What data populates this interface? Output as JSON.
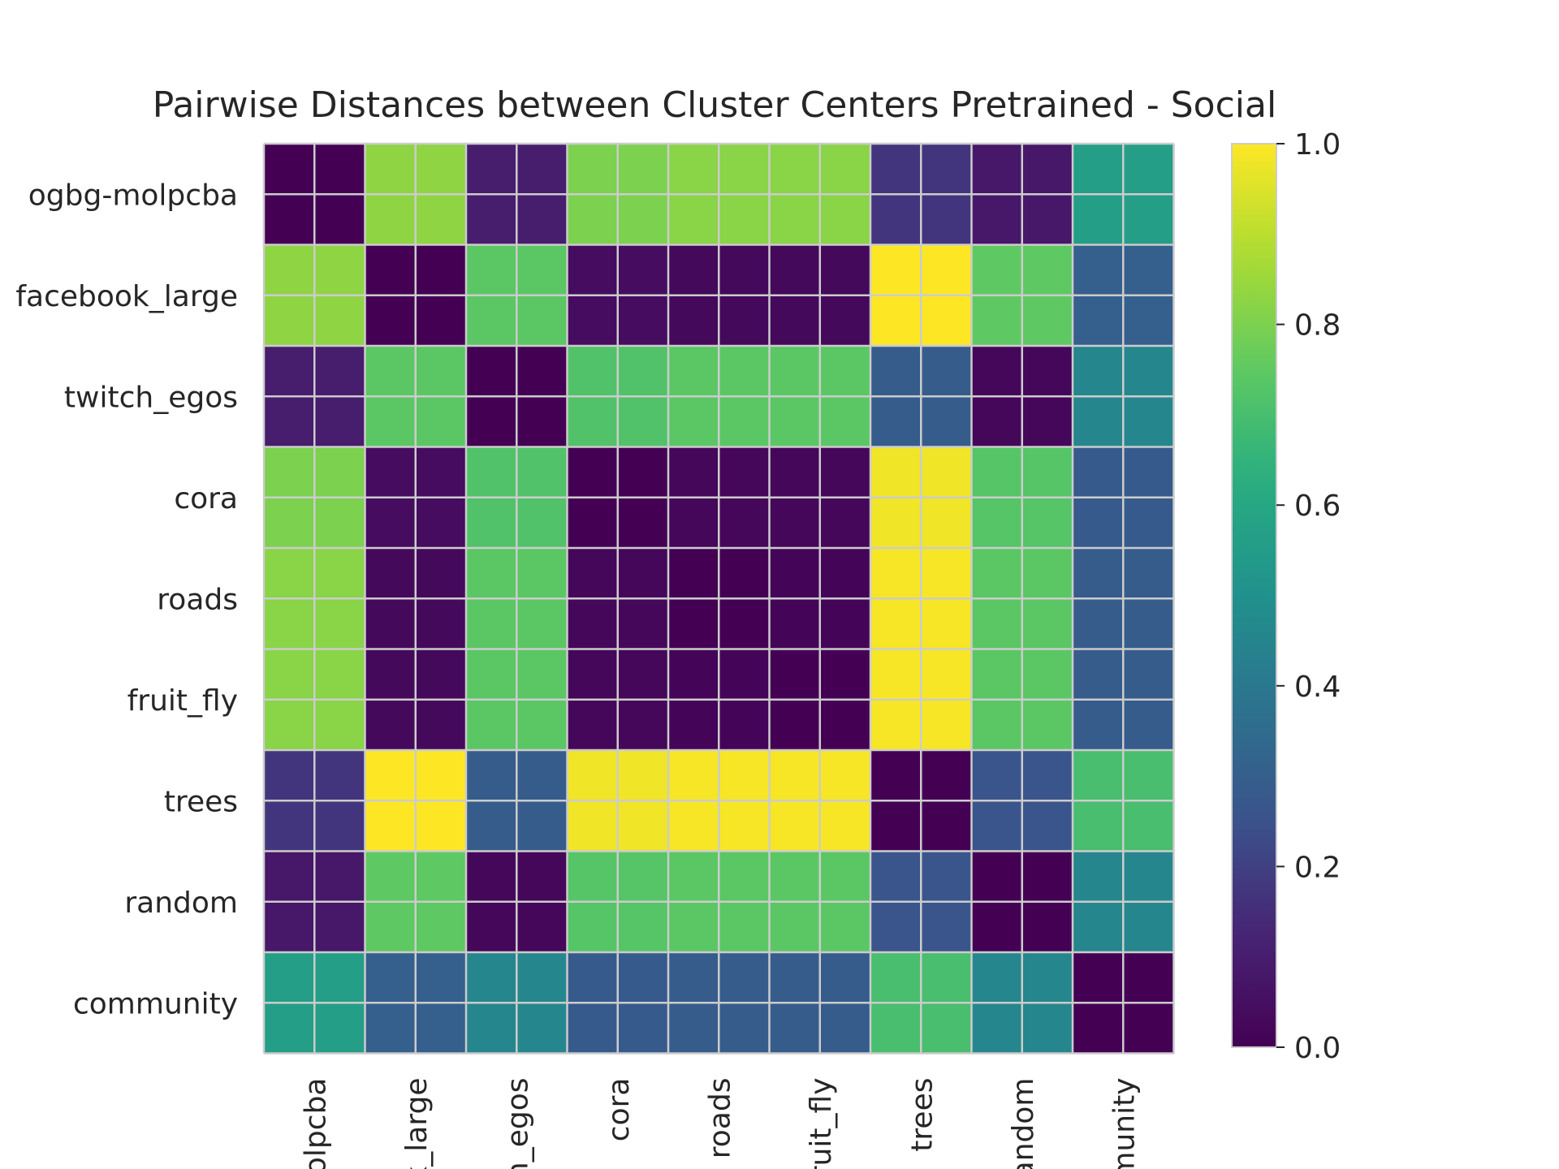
{
  "chart_data": {
    "type": "heatmap",
    "title": "Pairwise Distances between Cluster Centers Pretrained - Social",
    "row_labels": [
      "ogbg-molpcba",
      "facebook_large",
      "twitch_egos",
      "cora",
      "roads",
      "fruit_fly",
      "trees",
      "random",
      "community"
    ],
    "col_labels": [
      "ogbg-molpcba",
      "facebook_large",
      "twitch_egos",
      "cora",
      "roads",
      "fruit_fly",
      "trees",
      "random",
      "community"
    ],
    "visible_col_tick_text": [
      "olpcba",
      "k_large",
      "n_egos",
      "cora",
      "roads",
      "fruit_fly",
      "trees",
      "andom",
      "munity"
    ],
    "values": [
      [
        0.0,
        0.83,
        0.1,
        0.8,
        0.82,
        0.82,
        0.17,
        0.08,
        0.56
      ],
      [
        0.83,
        0.0,
        0.74,
        0.04,
        0.03,
        0.03,
        1.0,
        0.75,
        0.3
      ],
      [
        0.1,
        0.74,
        0.0,
        0.72,
        0.74,
        0.74,
        0.29,
        0.02,
        0.46
      ],
      [
        0.8,
        0.04,
        0.72,
        0.0,
        0.02,
        0.02,
        0.98,
        0.73,
        0.28
      ],
      [
        0.82,
        0.03,
        0.74,
        0.02,
        0.0,
        0.01,
        0.99,
        0.74,
        0.29
      ],
      [
        0.82,
        0.03,
        0.74,
        0.02,
        0.01,
        0.0,
        0.99,
        0.74,
        0.29
      ],
      [
        0.17,
        1.0,
        0.29,
        0.98,
        0.99,
        0.99,
        0.0,
        0.26,
        0.7
      ],
      [
        0.08,
        0.75,
        0.02,
        0.73,
        0.74,
        0.74,
        0.26,
        0.0,
        0.46
      ],
      [
        0.56,
        0.3,
        0.46,
        0.28,
        0.29,
        0.29,
        0.7,
        0.46,
        0.0
      ]
    ],
    "colormap": "viridis",
    "vmin": 0.0,
    "vmax": 1.0,
    "colorbar_ticks": [
      "0.0",
      "0.2",
      "0.4",
      "0.6",
      "0.8",
      "1.0"
    ],
    "grid": true,
    "colorbar_position": "right"
  }
}
